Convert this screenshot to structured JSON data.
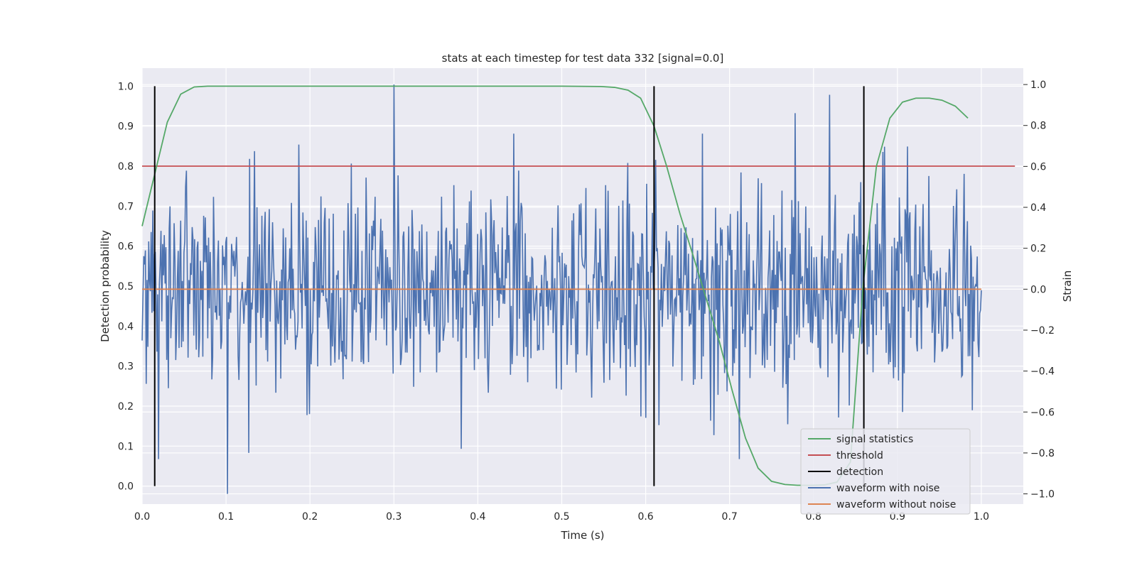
{
  "chart_data": {
    "type": "line",
    "title": "stats at each timestep for test data 332 [signal=0.0]",
    "xlabel": "Time (s)",
    "ylabel_left": "Detection probability",
    "ylabel_right": "Strain",
    "xlim": [
      0.0,
      1.05
    ],
    "ylim_left": [
      -0.045,
      1.045
    ],
    "ylim_right": [
      -1.05,
      1.08
    ],
    "x_ticks": [
      "0.0",
      "0.1",
      "0.2",
      "0.3",
      "0.4",
      "0.5",
      "0.6",
      "0.7",
      "0.8",
      "0.9",
      "1.0"
    ],
    "y_ticks_left": [
      "0.0",
      "0.1",
      "0.2",
      "0.3",
      "0.4",
      "0.5",
      "0.6",
      "0.7",
      "0.8",
      "0.9",
      "1.0"
    ],
    "y_ticks_right": [
      "−1.0",
      "−0.8",
      "−0.6",
      "−0.4",
      "−0.2",
      "0.0",
      "0.2",
      "0.4",
      "0.6",
      "0.8",
      "1.0"
    ],
    "grid": true,
    "legend_position": "lower-right",
    "colors": {
      "background": "#eaeaf2",
      "signal_statistics": "#55a868",
      "threshold": "#c44e52",
      "detection": "#000000",
      "waveform_with_noise": "#4c72b0",
      "waveform_without_noise": "#dd8452"
    },
    "series": [
      {
        "name": "signal statistics",
        "axis": "left",
        "x": [
          0.0,
          0.015,
          0.03,
          0.046,
          0.062,
          0.078,
          0.1,
          0.2,
          0.3,
          0.4,
          0.5,
          0.547,
          0.563,
          0.579,
          0.594,
          0.61,
          0.625,
          0.641,
          0.656,
          0.672,
          0.688,
          0.703,
          0.719,
          0.734,
          0.75,
          0.766,
          0.781,
          0.797,
          0.813,
          0.828,
          0.844,
          0.859,
          0.875,
          0.891,
          0.906,
          0.922,
          0.938,
          0.953,
          0.969,
          0.984
        ],
        "values": [
          0.65,
          0.78,
          0.91,
          0.98,
          0.998,
          1.0,
          1.0,
          1.0,
          1.0,
          1.0,
          1.0,
          0.999,
          0.997,
          0.99,
          0.97,
          0.9,
          0.8,
          0.68,
          0.58,
          0.47,
          0.36,
          0.24,
          0.12,
          0.045,
          0.012,
          0.004,
          0.002,
          0.002,
          0.003,
          0.01,
          0.06,
          0.5,
          0.8,
          0.92,
          0.96,
          0.97,
          0.97,
          0.965,
          0.95,
          0.92
        ]
      },
      {
        "name": "threshold",
        "axis": "left",
        "x": [
          0.0,
          1.04
        ],
        "values": [
          0.8,
          0.8
        ]
      },
      {
        "name": "detection",
        "axis": "left",
        "x_positions": [
          0.015,
          0.61,
          0.86
        ],
        "y_range": [
          0.0,
          1.0
        ]
      },
      {
        "name": "waveform with noise",
        "axis": "right",
        "x_range": [
          0.0,
          1.0
        ],
        "num_samples": 1024,
        "amplitude_std": 0.25,
        "peaks": [
          {
            "x": 0.3,
            "value": 1.0
          },
          {
            "x": 0.102,
            "value": -1.0
          },
          {
            "x": 0.668,
            "value": 0.76
          },
          {
            "x": 0.712,
            "value": -0.83
          },
          {
            "x": 0.443,
            "value": 0.76
          },
          {
            "x": 0.38,
            "value": -0.78
          },
          {
            "x": 0.127,
            "value": -0.8
          },
          {
            "x": 0.02,
            "value": -0.83
          },
          {
            "x": 0.778,
            "value": 0.86
          },
          {
            "x": 0.906,
            "value": -0.6
          }
        ]
      },
      {
        "name": "waveform without noise",
        "axis": "right",
        "x": [
          0.0,
          1.0
        ],
        "values": [
          0.0,
          0.0
        ]
      }
    ]
  }
}
